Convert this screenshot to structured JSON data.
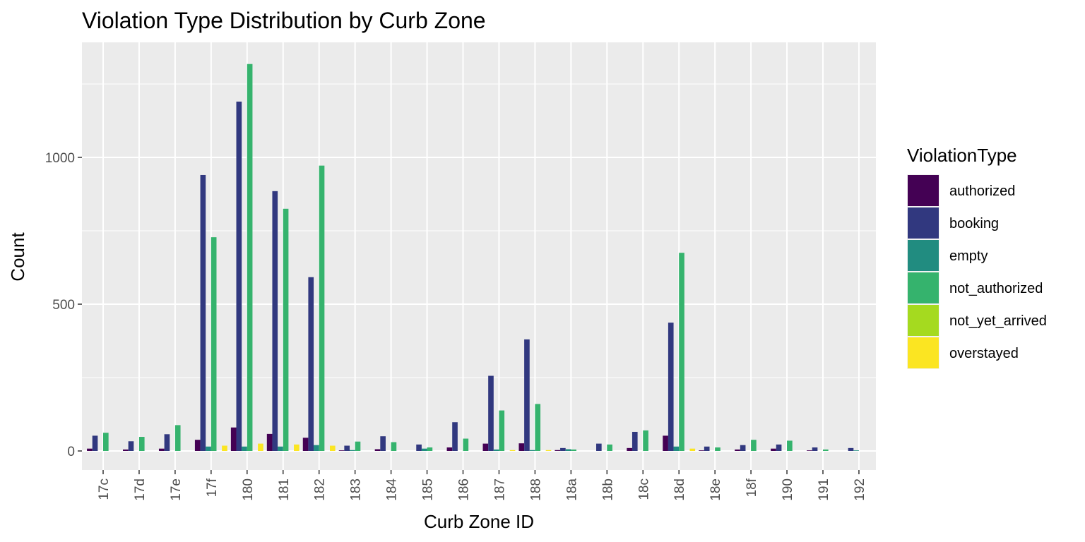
{
  "chart_data": {
    "type": "bar",
    "title": "Violation Type Distribution by Curb Zone",
    "xlabel": "Curb Zone ID",
    "ylabel": "Count",
    "ylim": [
      -60,
      1325
    ],
    "yticks": [
      0,
      500,
      1000
    ],
    "grid": true,
    "legend": {
      "title": "ViolationType",
      "position": "right"
    },
    "categories": [
      "17c",
      "17d",
      "17e",
      "17f",
      "180",
      "181",
      "182",
      "183",
      "184",
      "185",
      "186",
      "187",
      "188",
      "18a",
      "18b",
      "18c",
      "18d",
      "18e",
      "18f",
      "190",
      "191",
      "192"
    ],
    "series": [
      {
        "name": "authorized",
        "color": "#440154",
        "values": [
          8,
          5,
          8,
          38,
          80,
          58,
          45,
          2,
          6,
          0,
          12,
          25,
          26,
          3,
          0,
          10,
          52,
          2,
          5,
          8,
          2,
          0
        ]
      },
      {
        "name": "booking",
        "color": "#31387F",
        "values": [
          52,
          33,
          57,
          940,
          1190,
          885,
          592,
          18,
          50,
          22,
          98,
          256,
          380,
          10,
          25,
          65,
          437,
          15,
          20,
          22,
          12,
          10
        ]
      },
      {
        "name": "empty",
        "color": "#218C80",
        "values": [
          0,
          0,
          0,
          15,
          15,
          15,
          20,
          3,
          0,
          8,
          0,
          5,
          3,
          6,
          0,
          0,
          15,
          0,
          0,
          0,
          0,
          2
        ]
      },
      {
        "name": "not_authorized",
        "color": "#35B36D",
        "values": [
          62,
          48,
          88,
          728,
          1318,
          825,
          972,
          32,
          30,
          12,
          42,
          138,
          160,
          5,
          22,
          70,
          675,
          12,
          38,
          35,
          5,
          0
        ]
      },
      {
        "name": "not_yet_arrived",
        "color": "#A5DA1F",
        "values": [
          0,
          0,
          0,
          0,
          0,
          0,
          0,
          0,
          0,
          0,
          0,
          0,
          0,
          0,
          0,
          0,
          0,
          0,
          0,
          0,
          0,
          0
        ]
      },
      {
        "name": "overstayed",
        "color": "#FBE522",
        "values": [
          0,
          0,
          0,
          18,
          25,
          22,
          18,
          0,
          0,
          0,
          0,
          3,
          3,
          0,
          0,
          0,
          8,
          0,
          0,
          0,
          0,
          0
        ]
      }
    ]
  }
}
